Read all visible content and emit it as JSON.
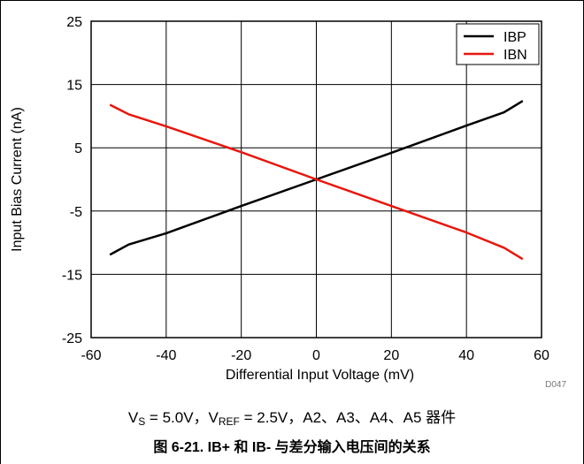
{
  "chart_data": {
    "type": "line",
    "xlabel": "Differential Input Voltage (mV)",
    "ylabel": "Input Bias Current (nA)",
    "xlim": [
      -60,
      60
    ],
    "ylim": [
      -25,
      25
    ],
    "x_ticks": [
      -60,
      -40,
      -20,
      0,
      20,
      40,
      60
    ],
    "y_ticks": [
      -25,
      -15,
      -5,
      5,
      15,
      25
    ],
    "x_tick_labels": [
      "-60",
      "-40",
      "-20",
      "0",
      "20",
      "40",
      "60"
    ],
    "y_tick_labels": [
      "-25",
      "-15",
      "-5",
      "5",
      "15",
      "25"
    ],
    "grid": true,
    "legend_position": "top-right",
    "series": [
      {
        "name": "IBP",
        "color": "#000000",
        "points": [
          [
            -55,
            -11.9
          ],
          [
            -50,
            -10.3
          ],
          [
            -40,
            -8.5
          ],
          [
            -20,
            -4.2
          ],
          [
            0,
            0.0
          ],
          [
            20,
            4.2
          ],
          [
            40,
            8.5
          ],
          [
            50,
            10.6
          ],
          [
            55,
            12.4
          ]
        ]
      },
      {
        "name": "IBN",
        "color": "#e8170d",
        "points": [
          [
            -55,
            11.8
          ],
          [
            -50,
            10.3
          ],
          [
            -40,
            8.4
          ],
          [
            -20,
            4.3
          ],
          [
            0,
            0.0
          ],
          [
            20,
            -4.2
          ],
          [
            40,
            -8.4
          ],
          [
            50,
            -10.8
          ],
          [
            55,
            -12.6
          ]
        ]
      }
    ],
    "annotation": "D047"
  },
  "conditions": {
    "vs_prefix": "V",
    "vs_sub": "S",
    "vs_value": " = 5.0V，V",
    "vref_sub": "REF",
    "vref_value": " = 2.5V，A2、A3、A4、A5 器件"
  },
  "caption": "图 6-21. IB+ 和 IB- 与差分输入电压间的关系"
}
